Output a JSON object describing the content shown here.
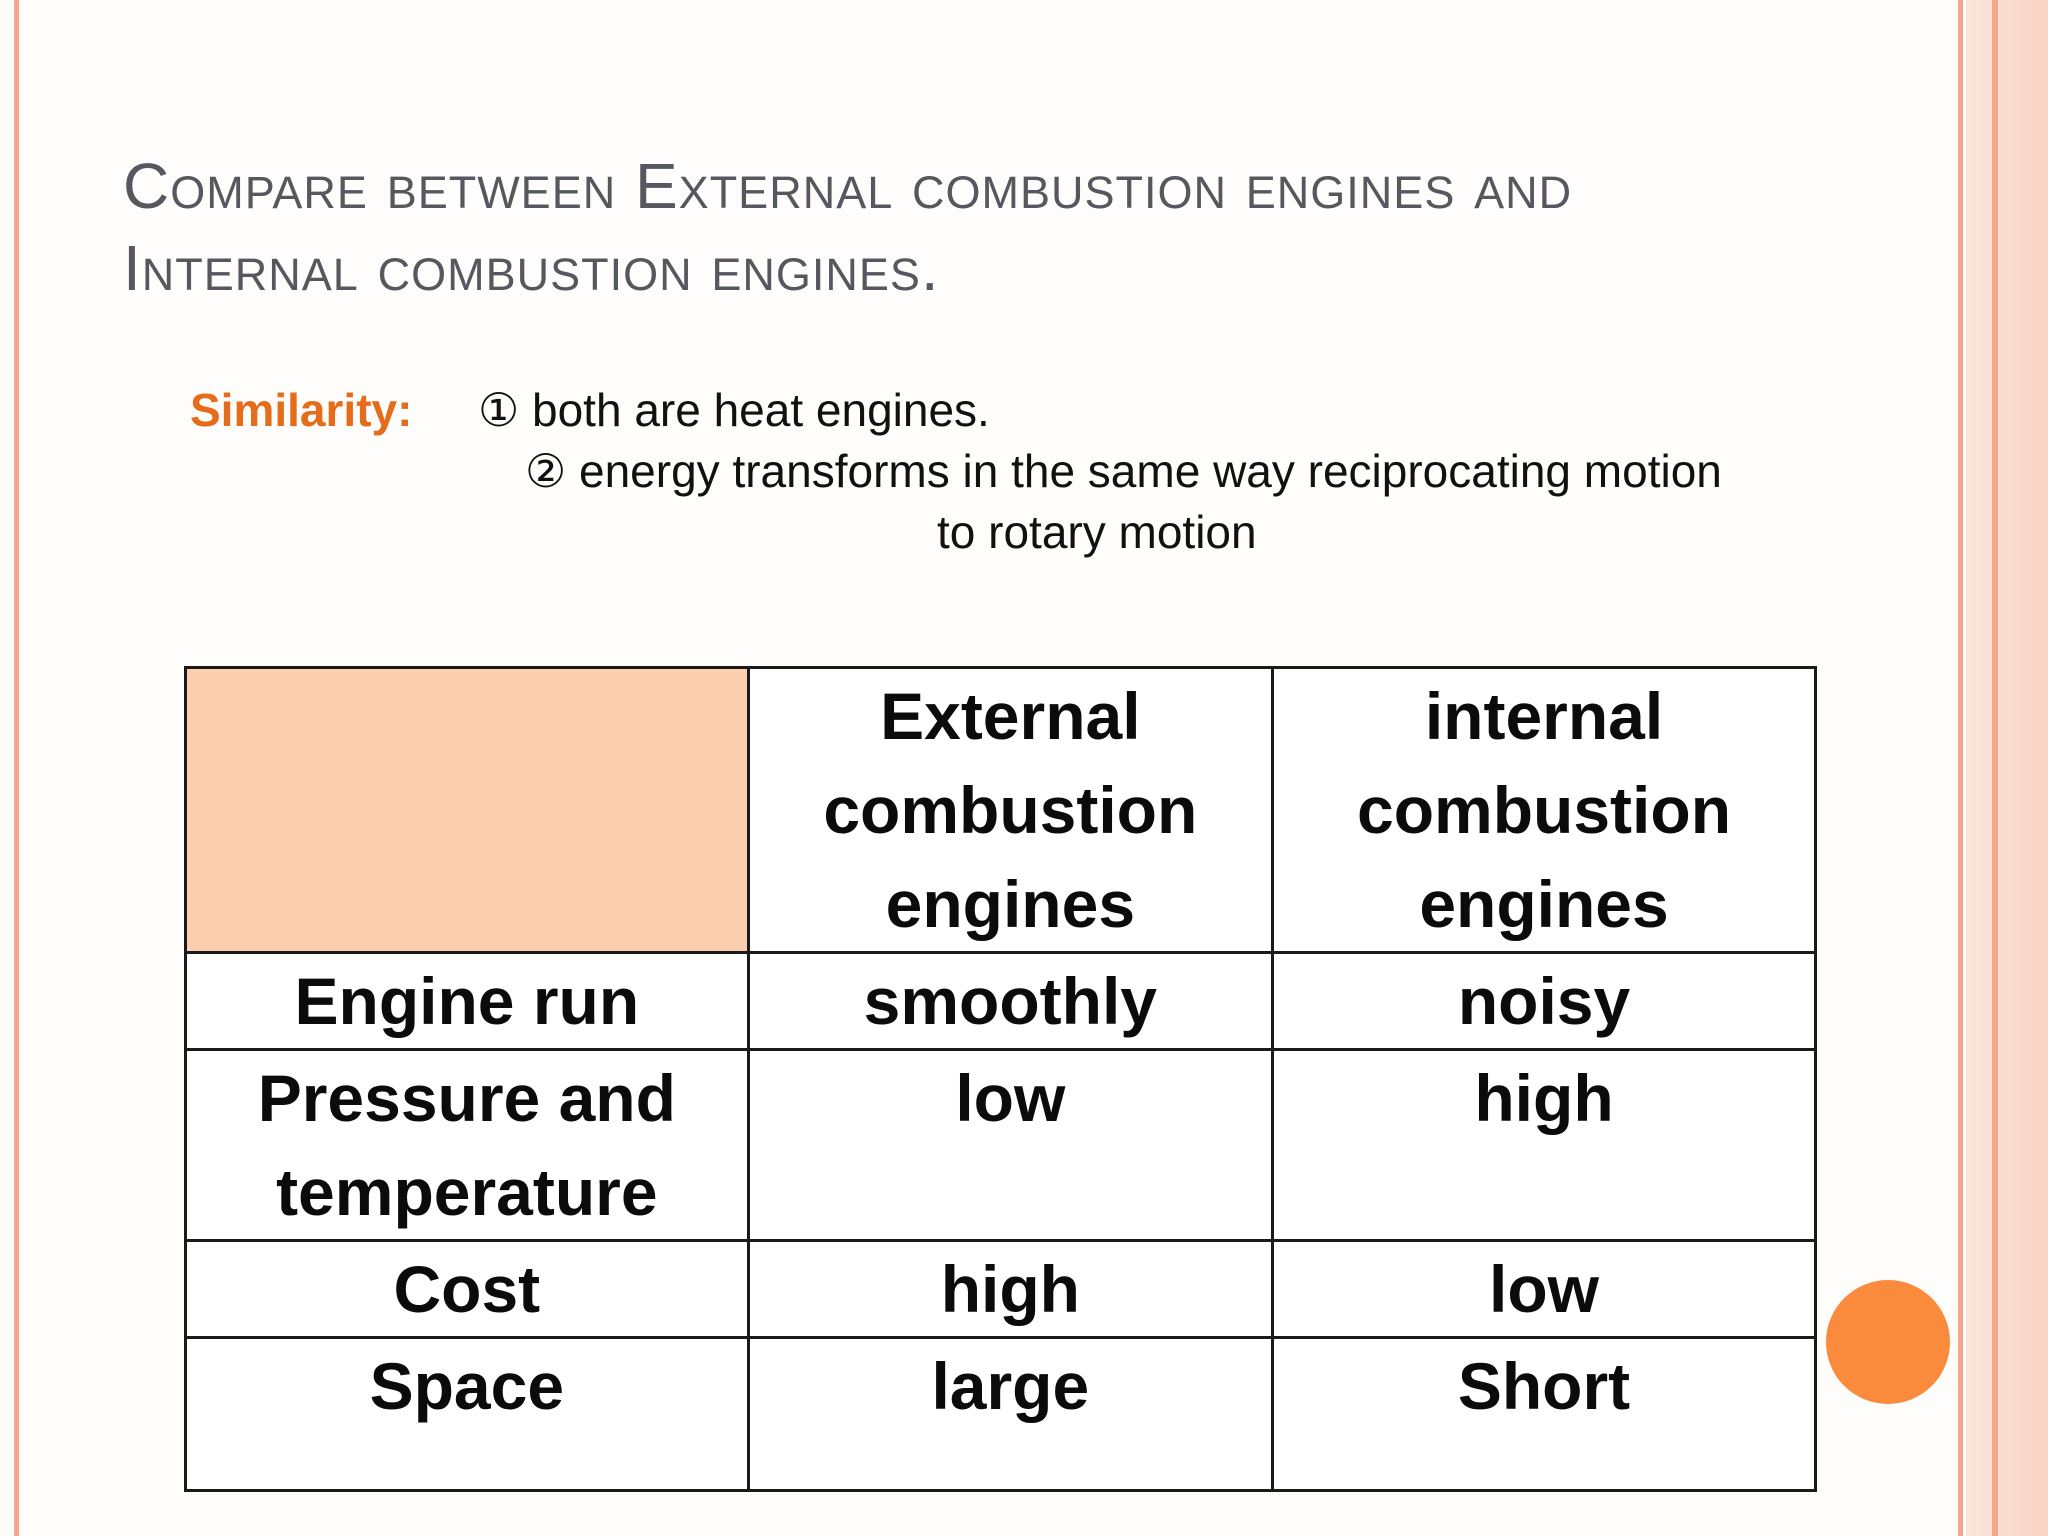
{
  "slide": {
    "title": "Compare between External combustion engines and Internal combustion engines.",
    "similarity": {
      "label": "Similarity:",
      "point1": "① both are heat engines.",
      "point2": "② energy transforms in the same way reciprocating  motion",
      "point2_cont": "to rotary motion"
    },
    "table": {
      "headers": [
        "",
        "External combustion engines",
        "internal combustion engines"
      ],
      "rows": [
        [
          "Engine run",
          "smoothly",
          "noisy"
        ],
        [
          "Pressure and temperature",
          "low",
          "high"
        ],
        [
          "Cost",
          "high",
          "low"
        ],
        [
          "Space",
          "large",
          "Short"
        ]
      ]
    }
  },
  "colors": {
    "accent_orange": "#e46c1b",
    "header_fill": "#fdceb0",
    "dot": "#fb8b3c",
    "border_line": "#f4a58c"
  }
}
